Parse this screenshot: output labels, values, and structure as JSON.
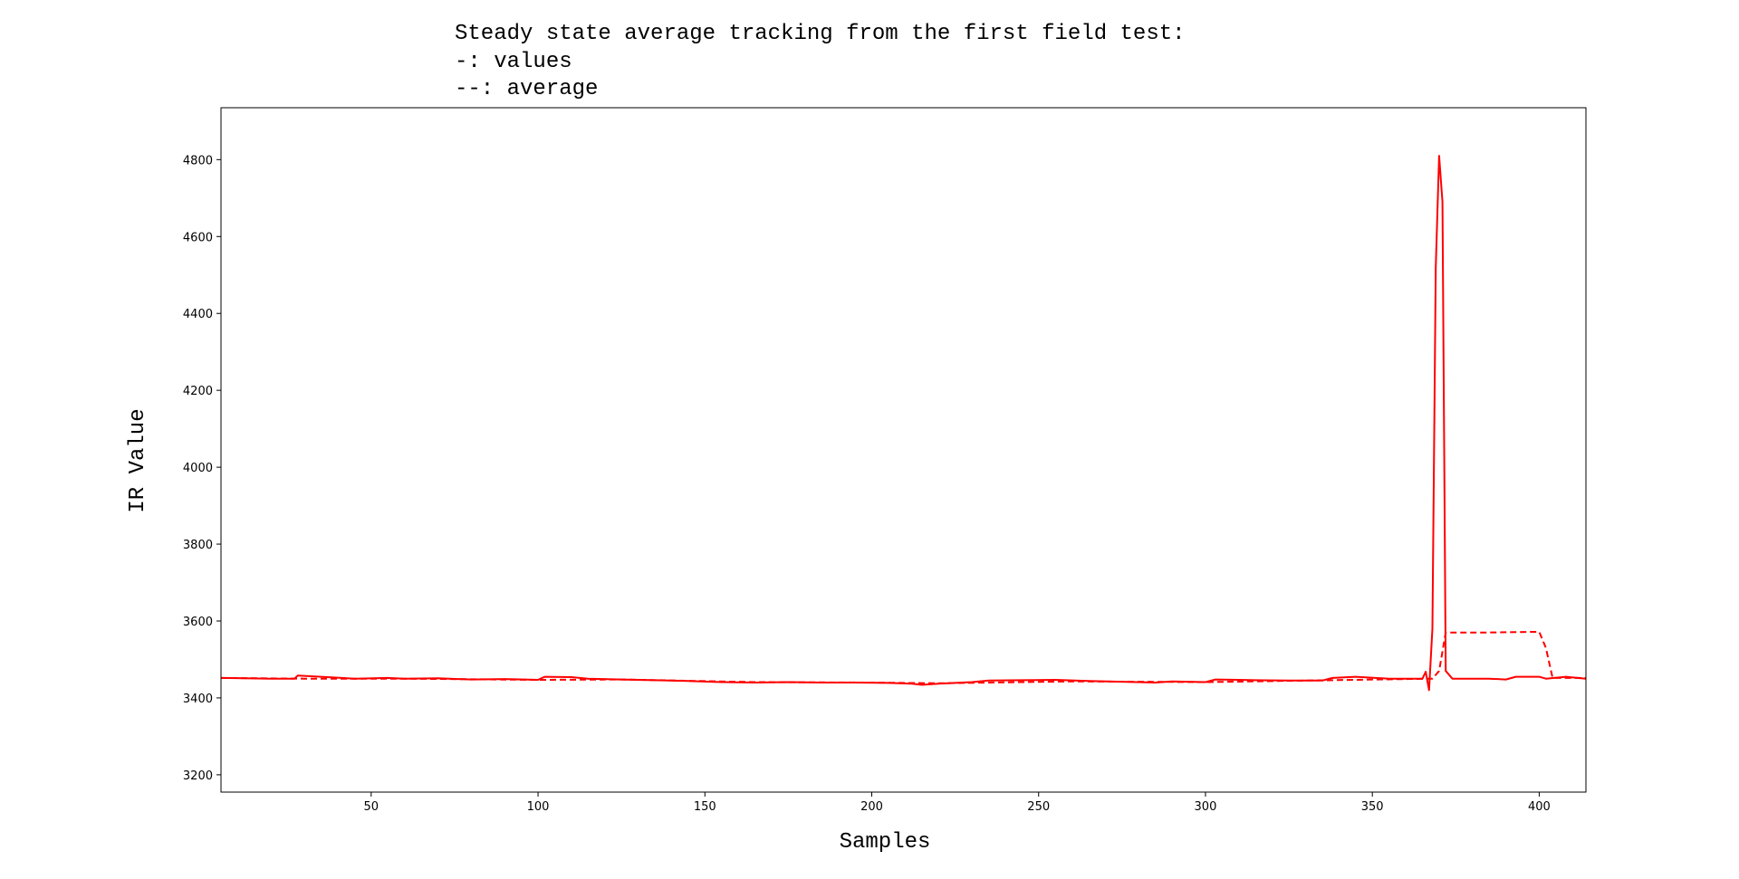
{
  "chart_data": {
    "type": "line",
    "title_lines": [
      "Steady state average tracking from the first field test:",
      "-: values",
      "--: average"
    ],
    "xlabel": "Samples",
    "ylabel": "IR Value",
    "xlim": [
      5,
      414
    ],
    "ylim": [
      3155,
      4935
    ],
    "x_ticks": [
      50,
      100,
      150,
      200,
      250,
      300,
      350,
      400
    ],
    "y_ticks": [
      3200,
      3400,
      3600,
      3800,
      4000,
      4200,
      4400,
      4600,
      4800
    ],
    "grid": false,
    "line_color": "#ff0000",
    "series": [
      {
        "style": "solid",
        "points": [
          [
            5,
            3452
          ],
          [
            20,
            3450
          ],
          [
            27,
            3450
          ],
          [
            28,
            3458
          ],
          [
            35,
            3455
          ],
          [
            45,
            3450
          ],
          [
            55,
            3452
          ],
          [
            60,
            3450
          ],
          [
            70,
            3451
          ],
          [
            80,
            3448
          ],
          [
            90,
            3449
          ],
          [
            100,
            3447
          ],
          [
            102,
            3455
          ],
          [
            110,
            3454
          ],
          [
            115,
            3450
          ],
          [
            125,
            3448
          ],
          [
            135,
            3446
          ],
          [
            145,
            3444
          ],
          [
            155,
            3441
          ],
          [
            165,
            3440
          ],
          [
            175,
            3441
          ],
          [
            185,
            3440
          ],
          [
            195,
            3440
          ],
          [
            205,
            3439
          ],
          [
            212,
            3437
          ],
          [
            215,
            3434
          ],
          [
            220,
            3437
          ],
          [
            230,
            3441
          ],
          [
            235,
            3445
          ],
          [
            245,
            3446
          ],
          [
            255,
            3447
          ],
          [
            265,
            3444
          ],
          [
            275,
            3442
          ],
          [
            285,
            3440
          ],
          [
            290,
            3443
          ],
          [
            300,
            3441
          ],
          [
            303,
            3448
          ],
          [
            310,
            3447
          ],
          [
            315,
            3446
          ],
          [
            325,
            3445
          ],
          [
            335,
            3445
          ],
          [
            338,
            3452
          ],
          [
            345,
            3455
          ],
          [
            355,
            3450
          ],
          [
            365,
            3450
          ],
          [
            366,
            3468
          ],
          [
            367,
            3420
          ],
          [
            368,
            3580
          ],
          [
            369,
            4520
          ],
          [
            370,
            4810
          ],
          [
            371,
            4690
          ],
          [
            372,
            3470
          ],
          [
            374,
            3450
          ],
          [
            385,
            3450
          ],
          [
            390,
            3448
          ],
          [
            393,
            3455
          ],
          [
            400,
            3455
          ],
          [
            402,
            3450
          ],
          [
            408,
            3455
          ],
          [
            414,
            3450
          ]
        ]
      },
      {
        "style": "dashed",
        "points": [
          [
            5,
            3452
          ],
          [
            30,
            3450
          ],
          [
            60,
            3450
          ],
          [
            100,
            3447
          ],
          [
            125,
            3448
          ],
          [
            165,
            3441
          ],
          [
            200,
            3440
          ],
          [
            220,
            3438
          ],
          [
            260,
            3443
          ],
          [
            300,
            3441
          ],
          [
            330,
            3445
          ],
          [
            368,
            3450
          ],
          [
            370,
            3470
          ],
          [
            372,
            3570
          ],
          [
            385,
            3570
          ],
          [
            400,
            3572
          ],
          [
            402,
            3530
          ],
          [
            404,
            3452
          ],
          [
            414,
            3452
          ]
        ]
      }
    ]
  }
}
